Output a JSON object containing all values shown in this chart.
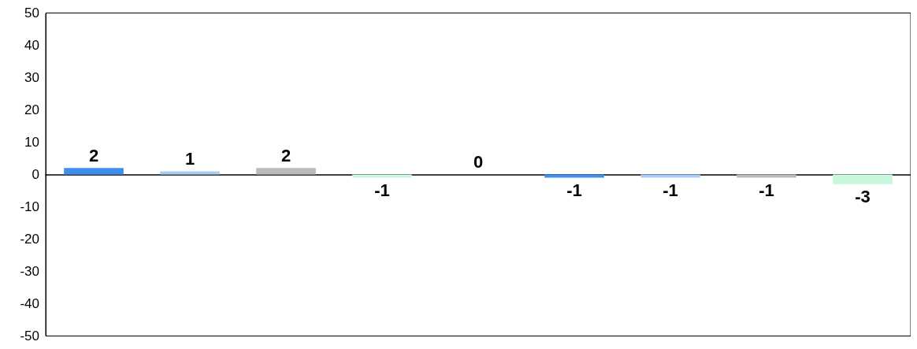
{
  "chart_data": {
    "type": "bar",
    "categories": [
      null,
      null,
      null,
      null,
      null,
      null,
      null,
      null,
      null
    ],
    "values": [
      2,
      1,
      2,
      -1,
      0,
      -1,
      -1,
      -1,
      -3
    ],
    "colors": [
      "#3d8ef0",
      "#a8ccf8",
      "#bababa",
      "#c8f8dc",
      "#3d8ef0",
      "#3d8ef0",
      "#a8ccf8",
      "#bababa",
      "#c8f8dc"
    ],
    "ylim": [
      -50,
      50
    ],
    "yticks": [
      -50,
      -40,
      -30,
      -20,
      -10,
      0,
      10,
      20,
      30,
      40,
      50
    ],
    "data_labels": true,
    "tick_labels": "y"
  }
}
